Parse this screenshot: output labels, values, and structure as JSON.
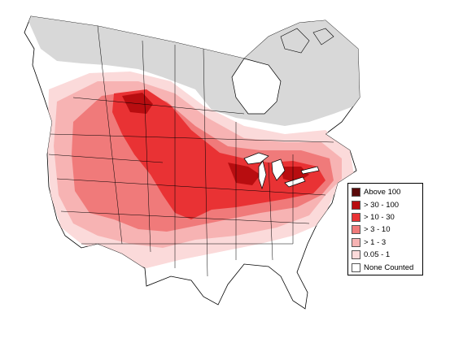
{
  "map": {
    "legend": {
      "items": [
        {
          "label": "Above 100",
          "color": "#5a0a0a"
        },
        {
          "label": "> 30 - 100",
          "color": "#b80d10"
        },
        {
          "label": "> 10 - 30",
          "color": "#e93234"
        },
        {
          "label": "> 3 - 10",
          "color": "#f07a7a"
        },
        {
          "label": "> 1 - 3",
          "color": "#f7b3b3"
        },
        {
          "label": "0.05 - 1",
          "color": "#fbdada"
        },
        {
          "label": "None Counted",
          "color": "#ffffff"
        }
      ]
    },
    "colors": {
      "no_data": "#d8d8d8",
      "land": "#ffffff",
      "borders": "#000000"
    }
  }
}
